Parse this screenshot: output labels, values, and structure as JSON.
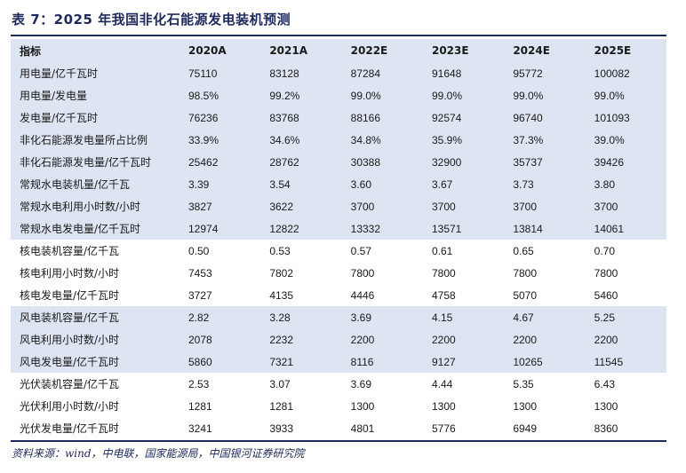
{
  "title": "表 7：2025 年我国非化石能源发电装机预测",
  "header": [
    "指标",
    "2020A",
    "2021A",
    "2022E",
    "2023E",
    "2024E",
    "2025E"
  ],
  "rows": [
    {
      "label": "用电量/亿千瓦时",
      "values": [
        "75110",
        "83128",
        "87284",
        "91648",
        "95772",
        "100082"
      ]
    },
    {
      "label": "用电量/发电量",
      "values": [
        "98.5%",
        "99.2%",
        "99.0%",
        "99.0%",
        "99.0%",
        "99.0%"
      ]
    },
    {
      "label": "发电量/亿千瓦时",
      "values": [
        "76236",
        "83768",
        "88166",
        "92574",
        "96740",
        "101093"
      ]
    },
    {
      "label": "非化石能源发电量所占比例",
      "values": [
        "33.9%",
        "34.6%",
        "34.8%",
        "35.9%",
        "37.3%",
        "39.0%"
      ]
    },
    {
      "label": "非化石能源发电量/亿千瓦时",
      "values": [
        "25462",
        "28762",
        "30388",
        "32900",
        "35737",
        "39426"
      ]
    },
    {
      "label": "常规水电装机量/亿千瓦",
      "values": [
        "3.39",
        "3.54",
        "3.60",
        "3.67",
        "3.73",
        "3.80"
      ]
    },
    {
      "label": "常规水电利用小时数/小时",
      "values": [
        "3827",
        "3622",
        "3700",
        "3700",
        "3700",
        "3700"
      ]
    },
    {
      "label": "常规水电发电量/亿千瓦时",
      "values": [
        "12974",
        "12822",
        "13332",
        "13571",
        "13814",
        "14061"
      ]
    },
    {
      "label": "核电装机容量/亿千瓦",
      "values": [
        "0.50",
        "0.53",
        "0.57",
        "0.61",
        "0.65",
        "0.70"
      ]
    },
    {
      "label": "核电利用小时数/小时",
      "values": [
        "7453",
        "7802",
        "7800",
        "7800",
        "7800",
        "7800"
      ]
    },
    {
      "label": "核电发电量/亿千瓦时",
      "values": [
        "3727",
        "4135",
        "4446",
        "4758",
        "5070",
        "5460"
      ]
    },
    {
      "label": "风电装机容量/亿千瓦",
      "values": [
        "2.82",
        "3.28",
        "3.69",
        "4.15",
        "4.67",
        "5.25"
      ]
    },
    {
      "label": "风电利用小时数/小时",
      "values": [
        "2078",
        "2232",
        "2200",
        "2200",
        "2200",
        "2200"
      ]
    },
    {
      "label": "风电发电量/亿千瓦时",
      "values": [
        "5860",
        "7321",
        "8116",
        "9127",
        "10265",
        "11545"
      ]
    },
    {
      "label": "光伏装机容量/亿千瓦",
      "values": [
        "2.53",
        "3.07",
        "3.69",
        "4.44",
        "5.35",
        "6.43"
      ]
    },
    {
      "label": "光伏利用小时数/小时",
      "values": [
        "1281",
        "1281",
        "1300",
        "1300",
        "1300",
        "1300"
      ]
    },
    {
      "label": "光伏发电量/亿千瓦时",
      "values": [
        "3241",
        "3933",
        "4801",
        "5776",
        "6949",
        "8360"
      ]
    }
  ],
  "shaded_row_groups": [
    [
      0,
      4
    ],
    [
      5,
      7
    ],
    [
      11,
      13
    ]
  ],
  "shade_color": "#dde5f2",
  "accent_color": "#1f2a5c",
  "source": "资料来源：wind，中电联，国家能源局，中国银河证券研究院"
}
